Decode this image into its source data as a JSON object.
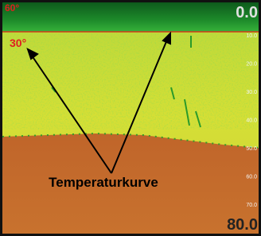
{
  "screen": {
    "top_left_temp": "60°",
    "depth_top": "0.0",
    "temp_mark": "30°",
    "depth_bottom": "80.0",
    "scale": [
      "10.0",
      "20.0",
      "30.0",
      "40.0",
      "50.0",
      "60.0",
      "70.0"
    ]
  },
  "annotation": {
    "label": "Temperaturkurve"
  }
}
